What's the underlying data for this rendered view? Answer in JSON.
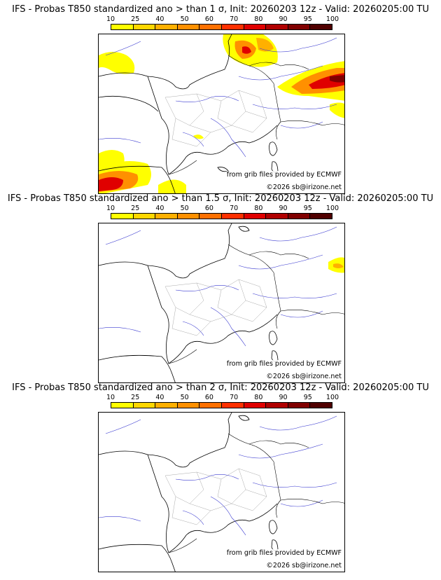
{
  "legend": {
    "ticks": [
      "10",
      "25",
      "40",
      "50",
      "60",
      "70",
      "80",
      "90",
      "95",
      "100"
    ],
    "colors": [
      "#ffff00",
      "#ffd700",
      "#ffb000",
      "#ff9000",
      "#ff7000",
      "#ff3000",
      "#e00000",
      "#b00000",
      "#800000",
      "#500000"
    ]
  },
  "panels": [
    {
      "title": "IFS - Probas T850  standardized ano > than 1 σ, Init: 20260203 12z - Valid: 20260205:00 TU"
    },
    {
      "title": "IFS - Probas T850  standardized ano > than 1.5 σ, Init: 20260203 12z - Valid: 20260205:00 TU"
    },
    {
      "title": "IFS - Probas T850  standardized ano > than 2 σ, Init: 20260203 12z - Valid: 20260205:00 TU"
    }
  ],
  "credits": {
    "source": "from grib files provided by ECMWF",
    "copyright": "©2026 sb@irizone.net"
  }
}
